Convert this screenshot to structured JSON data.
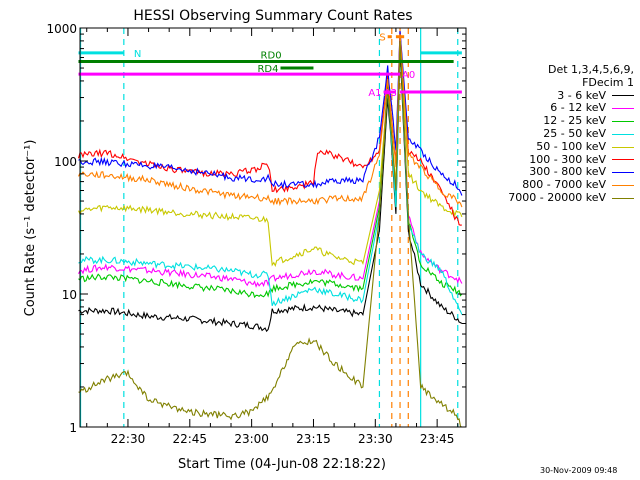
{
  "chart_data": {
    "type": "line",
    "title": "HESSI Observing Summary Count Rates",
    "xlabel": "Start Time (04-Jun-08 22:18:22)",
    "ylabel": "Count Rate (s⁻¹ detector⁻¹)",
    "log_y": true,
    "ylim": [
      1,
      1000
    ],
    "xlim": [
      "22:18:22",
      "23:52:00"
    ],
    "x_ticks": [
      "22:30",
      "22:45",
      "23:00",
      "23:15",
      "23:30",
      "23:45"
    ],
    "y_ticks": [
      "1",
      "10",
      "100",
      "1000"
    ],
    "legend_title": [
      "Det 1,3,4,5,6,9,",
      "FDecim 1"
    ],
    "legend_position": "right",
    "series": [
      {
        "name": "3 - 6 keV",
        "color": "#000000",
        "points": [
          [
            "22:18",
            7.5
          ],
          [
            "22:25",
            7.5
          ],
          [
            "22:35",
            6.8
          ],
          [
            "22:45",
            6.5
          ],
          [
            "22:55",
            6.0
          ],
          [
            "23:00",
            5.8
          ],
          [
            "23:04",
            5.5
          ],
          [
            "23:05",
            7.5
          ],
          [
            "23:15",
            8.0
          ],
          [
            "23:20",
            7.5
          ],
          [
            "23:27",
            7.0
          ],
          [
            "23:31",
            30
          ],
          [
            "23:33",
            300
          ],
          [
            "23:34",
            120
          ],
          [
            "23:35",
            40
          ],
          [
            "23:36",
            700
          ],
          [
            "23:38",
            30
          ],
          [
            "23:41",
            12
          ],
          [
            "23:46",
            8.0
          ],
          [
            "23:50",
            6.5
          ],
          [
            "23:51",
            6.0
          ]
        ]
      },
      {
        "name": "6 - 12 keV",
        "color": "#ff00ff",
        "points": [
          [
            "22:18",
            15
          ],
          [
            "22:25",
            16
          ],
          [
            "22:35",
            15
          ],
          [
            "22:45",
            14
          ],
          [
            "22:55",
            13
          ],
          [
            "23:00",
            12
          ],
          [
            "23:04",
            12
          ],
          [
            "23:05",
            13
          ],
          [
            "23:15",
            15
          ],
          [
            "23:20",
            14
          ],
          [
            "23:27",
            13
          ],
          [
            "23:31",
            50
          ],
          [
            "23:33",
            400
          ],
          [
            "23:34",
            150
          ],
          [
            "23:35",
            50
          ],
          [
            "23:36",
            900
          ],
          [
            "23:38",
            40
          ],
          [
            "23:41",
            20
          ],
          [
            "23:46",
            15
          ],
          [
            "23:50",
            13
          ],
          [
            "23:51",
            12
          ]
        ]
      },
      {
        "name": "12 - 25 keV",
        "color": "#00c800",
        "points": [
          [
            "22:18",
            13
          ],
          [
            "22:25",
            13.5
          ],
          [
            "22:35",
            12.5
          ],
          [
            "22:45",
            11.5
          ],
          [
            "22:55",
            10.5
          ],
          [
            "23:00",
            10
          ],
          [
            "23:04",
            10
          ],
          [
            "23:05",
            11
          ],
          [
            "23:15",
            12.5
          ],
          [
            "23:20",
            12
          ],
          [
            "23:27",
            11
          ],
          [
            "23:31",
            45
          ],
          [
            "23:33",
            380
          ],
          [
            "23:34",
            140
          ],
          [
            "23:35",
            45
          ],
          [
            "23:36",
            850
          ],
          [
            "23:38",
            35
          ],
          [
            "23:41",
            17
          ],
          [
            "23:46",
            12
          ],
          [
            "23:50",
            10.5
          ],
          [
            "23:51",
            10
          ]
        ]
      },
      {
        "name": "25 - 50 keV",
        "color": "#00e0e0",
        "points": [
          [
            "22:18",
            18
          ],
          [
            "22:25",
            18
          ],
          [
            "22:35",
            17
          ],
          [
            "22:45",
            16
          ],
          [
            "22:55",
            15
          ],
          [
            "23:00",
            14
          ],
          [
            "23:04",
            14
          ],
          [
            "23:05",
            8.5
          ],
          [
            "23:15",
            11
          ],
          [
            "23:20",
            10
          ],
          [
            "23:27",
            9.0
          ],
          [
            "23:31",
            40
          ],
          [
            "23:33",
            350
          ],
          [
            "23:34",
            130
          ],
          [
            "23:35",
            45
          ],
          [
            "23:36",
            800
          ],
          [
            "23:38",
            35
          ],
          [
            "23:41",
            20
          ],
          [
            "23:46",
            15
          ],
          [
            "23:50",
            8.0
          ],
          [
            "23:51",
            7.0
          ]
        ]
      },
      {
        "name": "50 - 100 keV",
        "color": "#c8c800",
        "points": [
          [
            "22:18",
            42
          ],
          [
            "22:25",
            45
          ],
          [
            "22:35",
            43
          ],
          [
            "22:45",
            40
          ],
          [
            "22:55",
            38
          ],
          [
            "23:00",
            37
          ],
          [
            "23:04",
            36
          ],
          [
            "23:05",
            17
          ],
          [
            "23:15",
            22
          ],
          [
            "23:20",
            19
          ],
          [
            "23:27",
            17
          ],
          [
            "23:31",
            60
          ],
          [
            "23:33",
            350
          ],
          [
            "23:34",
            160
          ],
          [
            "23:35",
            70
          ],
          [
            "23:36",
            800
          ],
          [
            "23:38",
            80
          ],
          [
            "23:41",
            60
          ],
          [
            "23:46",
            45
          ],
          [
            "23:50",
            40
          ],
          [
            "23:51",
            38
          ]
        ]
      },
      {
        "name": "100 - 300 keV",
        "color": "#ff0000",
        "points": [
          [
            "22:18",
            110
          ],
          [
            "22:25",
            115
          ],
          [
            "22:35",
            95
          ],
          [
            "22:45",
            82
          ],
          [
            "22:55",
            80
          ],
          [
            "23:00",
            85
          ],
          [
            "23:04",
            95
          ],
          [
            "23:05",
            60
          ],
          [
            "23:15",
            68
          ],
          [
            "23:16",
            120
          ],
          [
            "23:20",
            110
          ],
          [
            "23:27",
            90
          ],
          [
            "23:31",
            120
          ],
          [
            "23:33",
            450
          ],
          [
            "23:34",
            200
          ],
          [
            "23:35",
            100
          ],
          [
            "23:36",
            950
          ],
          [
            "23:38",
            120
          ],
          [
            "23:41",
            100
          ],
          [
            "23:46",
            60
          ],
          [
            "23:50",
            35
          ],
          [
            "23:51",
            33
          ]
        ]
      },
      {
        "name": "300 - 800 keV",
        "color": "#0000ff",
        "points": [
          [
            "22:18",
            100
          ],
          [
            "22:25",
            98
          ],
          [
            "22:35",
            92
          ],
          [
            "22:45",
            85
          ],
          [
            "22:55",
            75
          ],
          [
            "23:00",
            73
          ],
          [
            "23:04",
            74
          ],
          [
            "23:05",
            67
          ],
          [
            "23:15",
            66
          ],
          [
            "23:20",
            70
          ],
          [
            "23:27",
            72
          ],
          [
            "23:31",
            150
          ],
          [
            "23:33",
            500
          ],
          [
            "23:34",
            250
          ],
          [
            "23:35",
            120
          ],
          [
            "23:36",
            950
          ],
          [
            "23:38",
            150
          ],
          [
            "23:41",
            120
          ],
          [
            "23:46",
            80
          ],
          [
            "23:50",
            65
          ],
          [
            "23:51",
            55
          ]
        ]
      },
      {
        "name": "800 - 7000 keV",
        "color": "#ff8000",
        "points": [
          [
            "22:18",
            80
          ],
          [
            "22:25",
            78
          ],
          [
            "22:35",
            72
          ],
          [
            "22:45",
            62
          ],
          [
            "22:55",
            55
          ],
          [
            "23:00",
            54
          ],
          [
            "23:04",
            52
          ],
          [
            "23:05",
            50
          ],
          [
            "23:15",
            50
          ],
          [
            "23:20",
            52
          ],
          [
            "23:27",
            52
          ],
          [
            "23:31",
            110
          ],
          [
            "23:33",
            420
          ],
          [
            "23:34",
            200
          ],
          [
            "23:35",
            90
          ],
          [
            "23:36",
            900
          ],
          [
            "23:38",
            110
          ],
          [
            "23:41",
            90
          ],
          [
            "23:46",
            60
          ],
          [
            "23:50",
            50
          ],
          [
            "23:51",
            45
          ]
        ]
      },
      {
        "name": "7000 - 20000 keV",
        "color": "#808000",
        "points": [
          [
            "22:18",
            1.8
          ],
          [
            "22:25",
            2.3
          ],
          [
            "22:30",
            2.5
          ],
          [
            "22:35",
            1.6
          ],
          [
            "22:45",
            1.3
          ],
          [
            "22:55",
            1.2
          ],
          [
            "23:00",
            1.3
          ],
          [
            "23:05",
            1.8
          ],
          [
            "23:10",
            4.0
          ],
          [
            "23:15",
            4.5
          ],
          [
            "23:20",
            3.0
          ],
          [
            "23:27",
            2.0
          ],
          [
            "23:31",
            40
          ],
          [
            "23:33",
            350
          ],
          [
            "23:34",
            150
          ],
          [
            "23:35",
            60
          ],
          [
            "23:36",
            800
          ],
          [
            "23:38",
            40
          ],
          [
            "23:41",
            2.0
          ],
          [
            "23:46",
            1.5
          ],
          [
            "23:50",
            1.2
          ],
          [
            "23:51",
            1.0
          ]
        ]
      }
    ],
    "annotations": [
      {
        "label": "N",
        "color": "#00e0e0",
        "y": 650,
        "segments": [
          [
            "22:18",
            "22:29"
          ],
          [
            "23:41",
            "23:51"
          ]
        ]
      },
      {
        "label": "RD0",
        "color": "#008000",
        "y": 560,
        "segments": [
          [
            "22:18",
            "23:49"
          ]
        ]
      },
      {
        "label": "RD4",
        "color": "#008000",
        "y": 500,
        "segments": [
          [
            "23:07",
            "23:15"
          ]
        ]
      },
      {
        "label": "S",
        "color": "#ff8000",
        "y": 860,
        "segments": [
          [
            "23:33",
            "23:34"
          ],
          [
            "23:35",
            "23:37"
          ]
        ]
      },
      {
        "label": "A0",
        "color": "#ff00ff",
        "y": 450,
        "segments": [
          [
            "22:18",
            "23:36"
          ]
        ]
      },
      {
        "label": "A1",
        "color": "#ff00ff",
        "y": 330,
        "segments": [
          [
            "23:32",
            "23:35"
          ]
        ]
      },
      {
        "label": "A3",
        "color": "#ff00ff",
        "y": 330,
        "segments": [
          [
            "23:36",
            "23:51"
          ]
        ]
      }
    ],
    "vertical_markers": [
      {
        "x": "22:18:30",
        "color": "#00e0e0",
        "style": "solid"
      },
      {
        "x": "22:29",
        "color": "#00e0e0",
        "style": "dashed"
      },
      {
        "x": "23:31",
        "color": "#00e0e0",
        "style": "dashed"
      },
      {
        "x": "23:34",
        "color": "#ff8000",
        "style": "dashed"
      },
      {
        "x": "23:36",
        "color": "#ff8000",
        "style": "dashed"
      },
      {
        "x": "23:38",
        "color": "#ff8000",
        "style": "dashed"
      },
      {
        "x": "23:41",
        "color": "#00e0e0",
        "style": "solid"
      },
      {
        "x": "23:50",
        "color": "#00e0e0",
        "style": "dashed"
      }
    ]
  },
  "footer_date": "30-Nov-2009 09:48"
}
